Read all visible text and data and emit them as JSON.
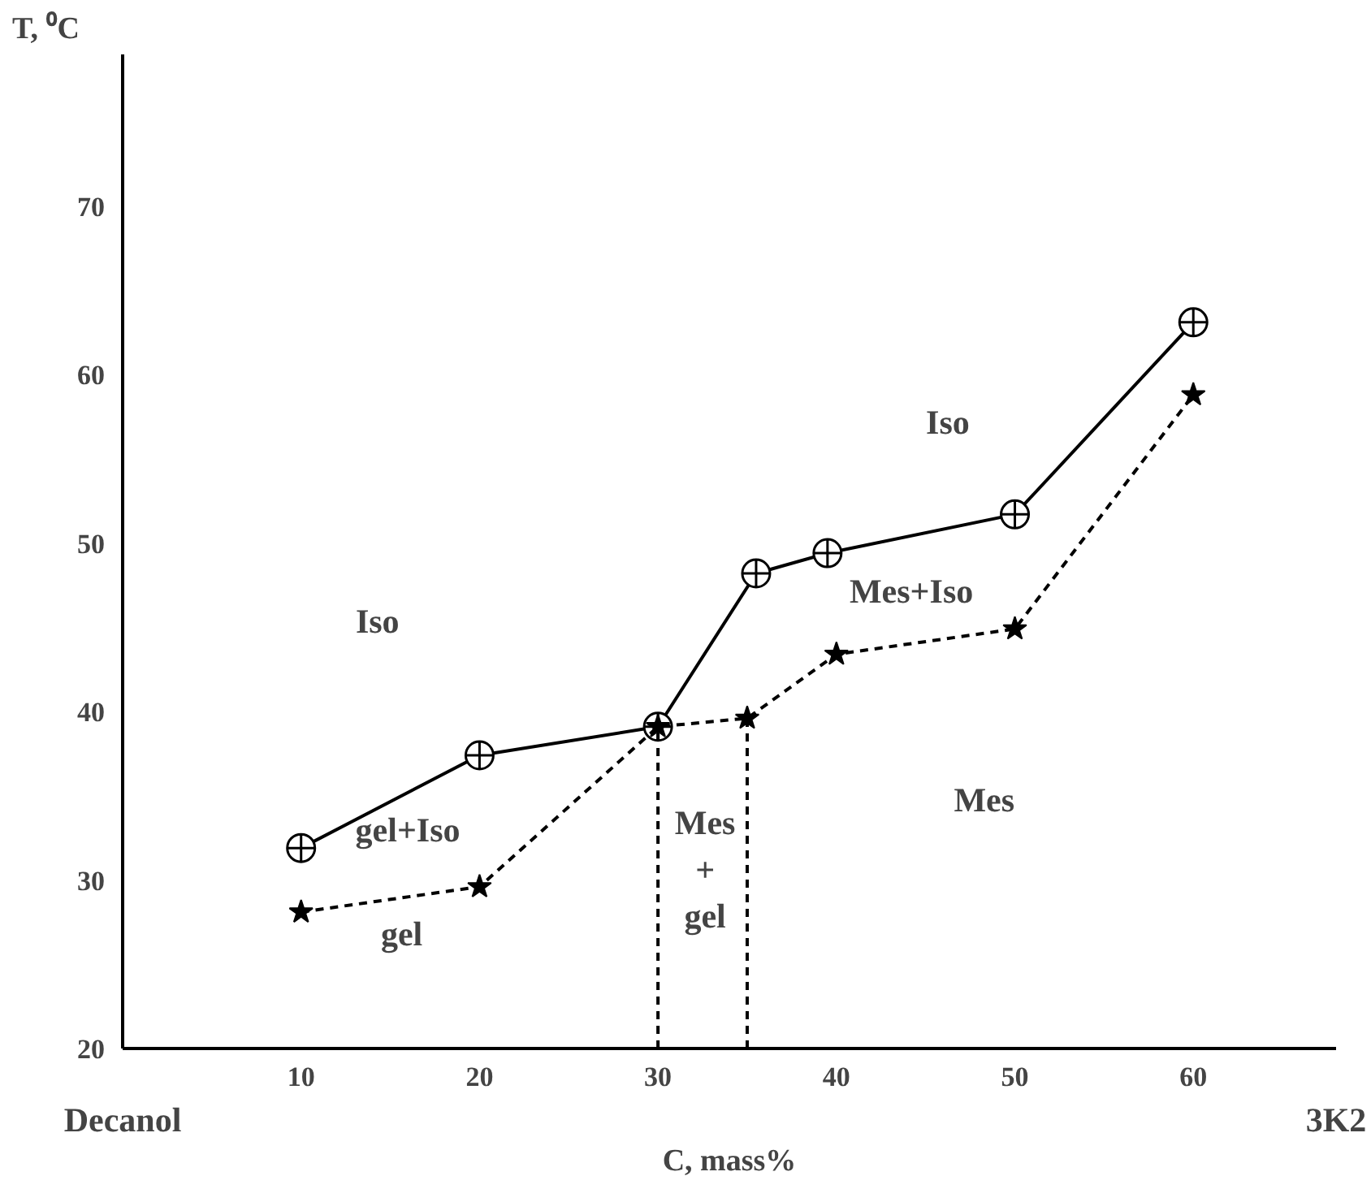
{
  "chart_data": {
    "type": "line",
    "xlabel": "C, mass%",
    "ylabel": "T, ⁰C",
    "xlim": [
      0,
      68
    ],
    "ylim": [
      20,
      79
    ],
    "xticks": [
      10,
      20,
      30,
      40,
      50,
      60
    ],
    "yticks": [
      20,
      30,
      40,
      50,
      60,
      70
    ],
    "grid": false,
    "series": [
      {
        "color": "#000000",
        "marker": "circle",
        "line_style": "solid",
        "x": [
          10,
          20,
          30,
          35.5,
          39.5,
          50,
          60
        ],
        "values": [
          31.9,
          37.4,
          39.1,
          48.2,
          49.4,
          51.7,
          63.1
        ]
      },
      {
        "color": "#000000",
        "marker": "star",
        "line_style": "dashed",
        "x": [
          10,
          20,
          30,
          35,
          40,
          50,
          60
        ],
        "values": [
          28.1,
          29.6,
          39.1,
          39.6,
          43.4,
          44.9,
          58.8
        ]
      },
      {
        "color": "#000000",
        "marker": "none",
        "line_style": "dashed",
        "x": [
          30,
          30
        ],
        "values": [
          20,
          39.1
        ]
      },
      {
        "color": "#000000",
        "marker": "none",
        "line_style": "dashed",
        "x": [
          35,
          35
        ],
        "values": [
          20,
          39.6
        ]
      }
    ],
    "annotations": [
      "Iso",
      "Iso",
      "Mes+Iso",
      "Mes",
      "gel+Iso",
      "gel",
      "Mes\n+\ngel",
      "Decanol",
      "3K2"
    ]
  }
}
